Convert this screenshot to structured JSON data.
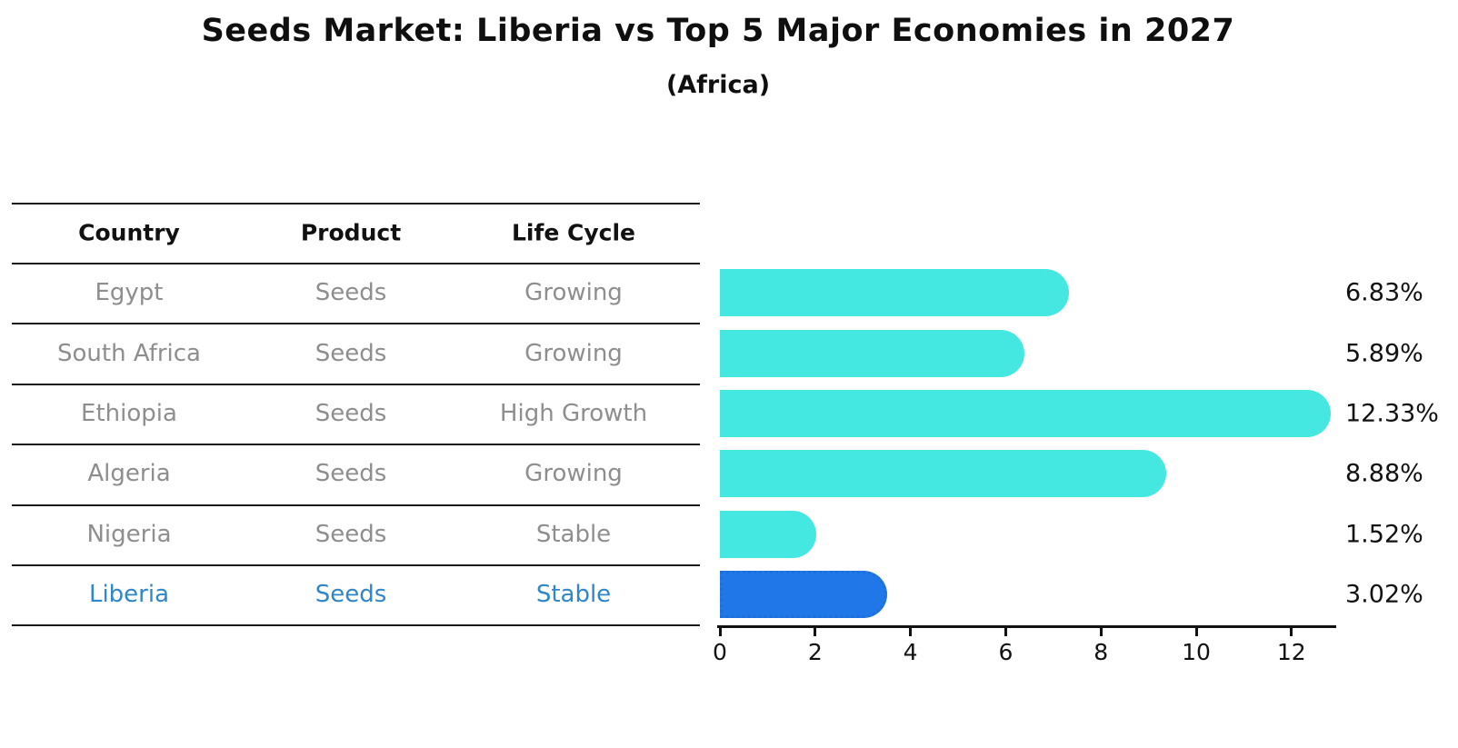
{
  "title": "Seeds Market: Liberia vs Top 5 Major Economies in 2027",
  "subtitle": "(Africa)",
  "table": {
    "headers": [
      "Country",
      "Product",
      "Life Cycle"
    ],
    "rows": [
      {
        "country": "Egypt",
        "product": "Seeds",
        "life_cycle": "Growing",
        "highlight": false
      },
      {
        "country": "South Africa",
        "product": "Seeds",
        "life_cycle": "Growing",
        "highlight": false
      },
      {
        "country": "Ethiopia",
        "product": "Seeds",
        "life_cycle": "High Growth",
        "highlight": false
      },
      {
        "country": "Algeria",
        "product": "Seeds",
        "life_cycle": "Growing",
        "highlight": false
      },
      {
        "country": "Nigeria",
        "product": "Seeds",
        "life_cycle": "Stable",
        "highlight": false
      },
      {
        "country": "Liberia",
        "product": "Seeds",
        "life_cycle": "Stable",
        "highlight": true
      }
    ]
  },
  "chart_data": {
    "type": "bar",
    "orientation": "horizontal",
    "title": "Seeds Market: Liberia vs Top 5 Major Economies in 2027",
    "subtitle": "(Africa)",
    "categories": [
      "Egypt",
      "South Africa",
      "Ethiopia",
      "Algeria",
      "Nigeria",
      "Liberia"
    ],
    "values": [
      6.83,
      5.89,
      12.33,
      8.88,
      1.52,
      3.02
    ],
    "value_labels": [
      "6.83%",
      "5.89%",
      "12.33%",
      "8.88%",
      "1.52%",
      "3.02%"
    ],
    "highlight_index": 5,
    "x_ticks": [
      0,
      2,
      4,
      6,
      8,
      10,
      12
    ],
    "x_tick_labels": [
      "0",
      "2",
      "4",
      "6",
      "8",
      "10",
      "12"
    ],
    "xlim": [
      0,
      12.95
    ],
    "grid": false,
    "legend": "none"
  },
  "colors": {
    "bar": "#45E8E1",
    "highlight_bar": "#2077E8",
    "highlight_border": "#1E6FDB",
    "highlight_text": "#2E86CB",
    "body_text": "#8E8E8E",
    "header_text": "#111111",
    "line": "#1A1A1A"
  }
}
